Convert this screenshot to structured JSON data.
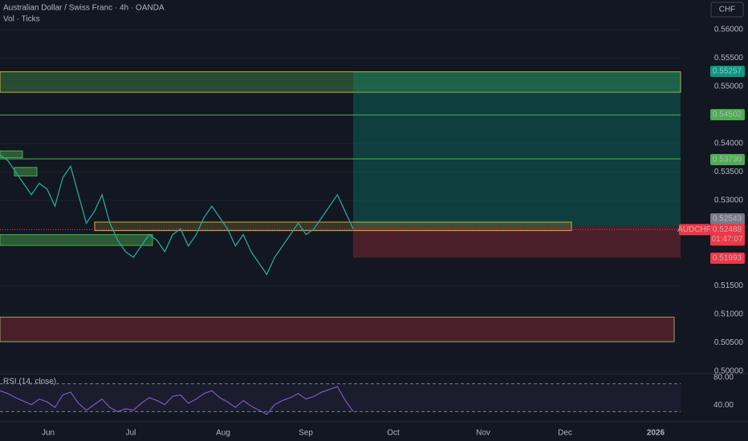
{
  "header": {
    "title": "Australian Dollar / Swiss Franc · 4h · OANDA",
    "volume_label": "Vol · Ticks",
    "currency_button": "CHF"
  },
  "price_axis": {
    "ylim": [
      0.5,
      0.56521
    ],
    "yticks": [
      {
        "value": 0.56,
        "label": "0.56000"
      },
      {
        "value": 0.555,
        "label": "0.55500"
      },
      {
        "value": 0.55,
        "label": "0.55000"
      },
      {
        "value": 0.545,
        "label": "0.54500"
      },
      {
        "value": 0.54,
        "label": "0.54000"
      },
      {
        "value": 0.535,
        "label": "0.53500"
      },
      {
        "value": 0.53,
        "label": "0.53000"
      },
      {
        "value": 0.515,
        "label": "0.51500"
      },
      {
        "value": 0.51,
        "label": "0.51000"
      },
      {
        "value": 0.505,
        "label": "0.50500"
      },
      {
        "value": 0.5,
        "label": "0.50000"
      }
    ]
  },
  "levels": [
    {
      "value": 0.55257,
      "label": "0.55257",
      "color": "#089981",
      "line": false
    },
    {
      "value": 0.54502,
      "label": "0.54502",
      "color": "#4caf50",
      "line": true
    },
    {
      "value": 0.5373,
      "label": "0.53730",
      "color": "#4caf50",
      "line": true
    },
    {
      "value": 0.52543,
      "label": "0.52543",
      "color": "#787b86",
      "line": false
    },
    {
      "value": 0.51993,
      "label": "0.51993",
      "color": "#f23645",
      "line": false
    }
  ],
  "current": {
    "symbol": "AUDCHF",
    "value": 0.52488,
    "label": "0.52488",
    "countdown": "01:47:07",
    "color": "#f23645"
  },
  "zones": [
    {
      "top": 0.5526,
      "bottom": 0.549,
      "fill": "rgba(76,175,80,0.35)",
      "stroke": "#c9b03a"
    },
    {
      "top": 0.55257,
      "bottom": 0.52543,
      "fill": "rgba(8,153,129,0.3)",
      "stroke": "none"
    },
    {
      "top": 0.52543,
      "bottom": 0.51993,
      "fill": "rgba(242,54,69,0.25)",
      "stroke": "none"
    },
    {
      "top": 0.5262,
      "bottom": 0.5247,
      "fill": "rgba(201,176,58,0.2)",
      "stroke": "#c9b03a"
    },
    {
      "top": 0.524,
      "bottom": 0.5221,
      "fill": "rgba(76,175,80,0.45)",
      "stroke": "#4caf50"
    },
    {
      "top": 0.5387,
      "bottom": 0.5375,
      "fill": "rgba(76,175,80,0.45)",
      "stroke": "#4caf50"
    },
    {
      "top": 0.5358,
      "bottom": 0.5343,
      "fill": "rgba(76,175,80,0.45)",
      "stroke": "#4caf50"
    },
    {
      "top": 0.5095,
      "bottom": 0.5052,
      "fill": "rgba(242,54,69,0.25)",
      "stroke": "#9aa36a"
    }
  ],
  "close": [
    0.538,
    0.537,
    0.535,
    0.533,
    0.531,
    0.533,
    0.532,
    0.529,
    0.534,
    0.536,
    0.531,
    0.526,
    0.528,
    0.531,
    0.526,
    0.523,
    0.521,
    0.52,
    0.522,
    0.524,
    0.523,
    0.521,
    0.524,
    0.525,
    0.522,
    0.524,
    0.527,
    0.529,
    0.527,
    0.525,
    0.522,
    0.524,
    0.521,
    0.519,
    0.517,
    0.52,
    0.522,
    0.524,
    0.526,
    0.524,
    0.525,
    0.527,
    0.529,
    0.531,
    0.528,
    0.525
  ],
  "close_color": "#26a69a",
  "rsi": {
    "label": "RSI (14, close)",
    "ylim": [
      30,
      90
    ],
    "levels": [
      {
        "value": 80,
        "label": "80.00"
      },
      {
        "value": 40,
        "label": "40.00"
      }
    ],
    "color": "#7e57c2",
    "values": [
      70,
      66,
      60,
      55,
      50,
      58,
      54,
      46,
      64,
      68,
      52,
      42,
      50,
      58,
      46,
      40,
      44,
      42,
      52,
      60,
      56,
      50,
      62,
      64,
      52,
      58,
      66,
      70,
      60,
      54,
      46,
      56,
      48,
      42,
      36,
      50,
      56,
      60,
      66,
      58,
      62,
      68,
      72,
      76,
      56,
      40
    ]
  },
  "time_axis": [
    "Jun",
    "Jul",
    "Aug",
    "Sep",
    "Oct",
    "Nov",
    "Dec",
    "2026"
  ]
}
